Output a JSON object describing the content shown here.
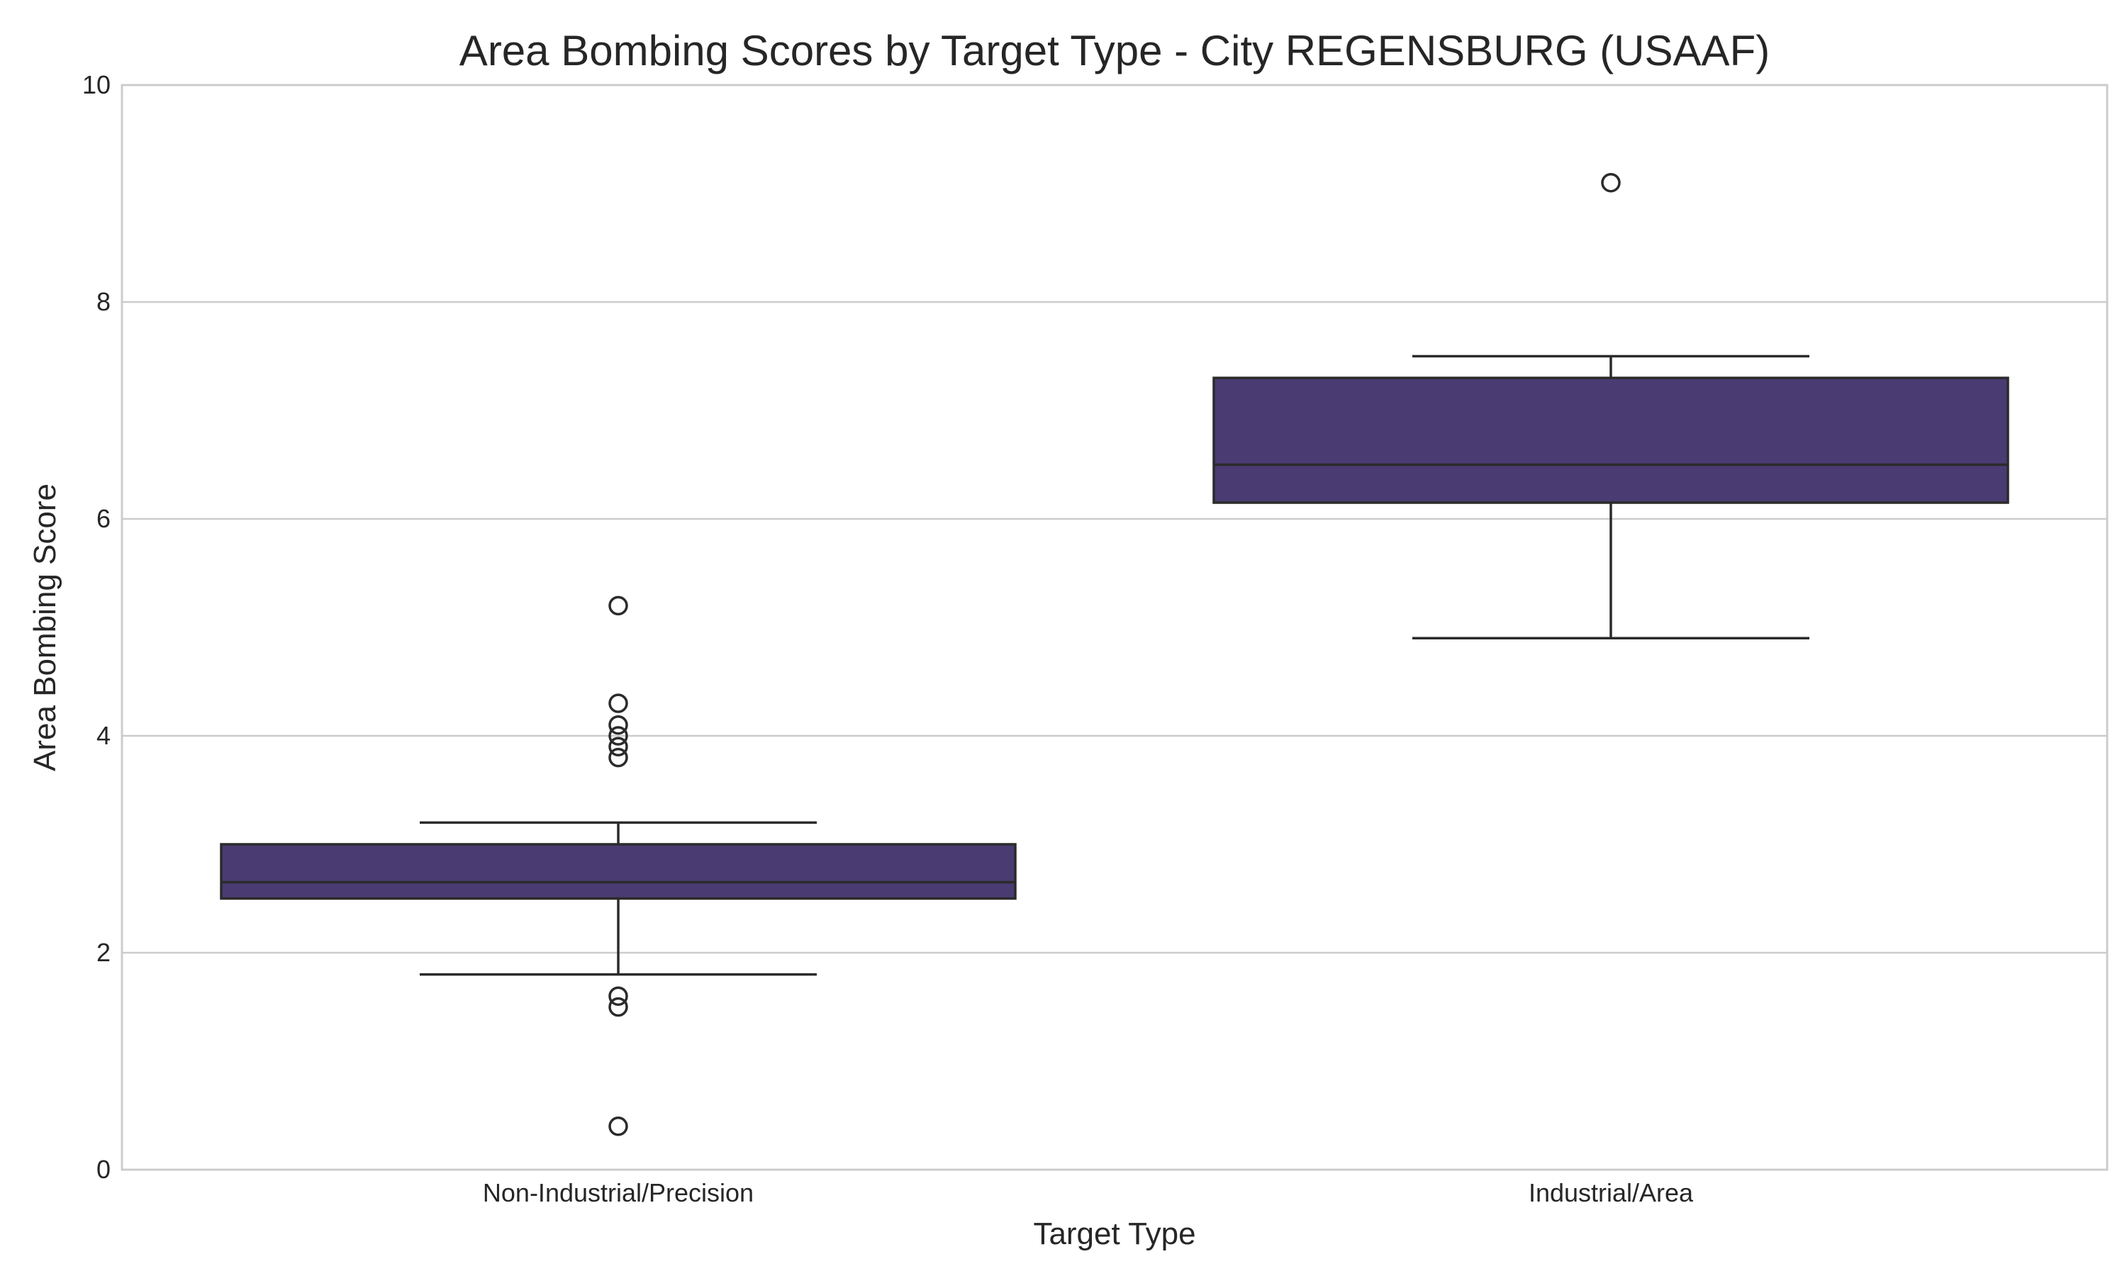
{
  "chart_data": {
    "type": "box",
    "title": "Area Bombing Scores by Target Type - City REGENSBURG (USAAF)",
    "xlabel": "Target Type",
    "ylabel": "Area Bombing Score",
    "ylim": [
      0,
      10
    ],
    "yticks": [
      0,
      2,
      4,
      6,
      8,
      10
    ],
    "grid": "horizontal",
    "categories": [
      "Non-Industrial/Precision",
      "Industrial/Area"
    ],
    "boxes": [
      {
        "category": "Non-Industrial/Precision",
        "whisker_low": 1.8,
        "q1": 2.5,
        "median": 2.65,
        "q3": 3.0,
        "whisker_high": 3.2,
        "outliers": [
          5.2,
          4.3,
          4.1,
          4.0,
          3.9,
          3.8,
          1.6,
          1.5,
          0.4
        ]
      },
      {
        "category": "Industrial/Area",
        "whisker_low": 4.9,
        "q1": 6.15,
        "median": 6.5,
        "q3": 7.3,
        "whisker_high": 7.5,
        "outliers": [
          9.1
        ]
      }
    ],
    "colors": {
      "box_fill": "#4a3b73",
      "line": "#2b2b2b",
      "grid": "#cccccc",
      "frame": "#cccccc",
      "text": "#262626"
    }
  }
}
